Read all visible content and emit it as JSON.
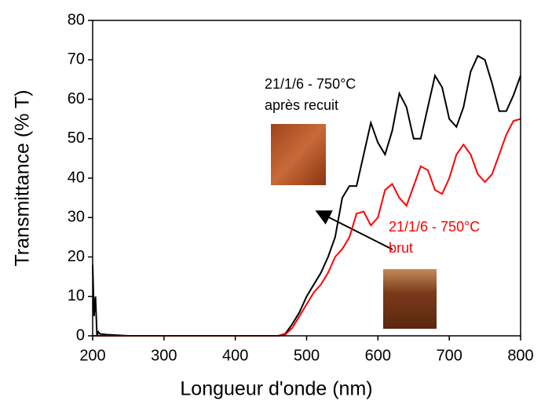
{
  "chart_data": {
    "type": "line",
    "xlabel": "Longueur d'onde (nm)",
    "ylabel": "Transmittance (% T)",
    "x": [
      200,
      202,
      204,
      206,
      208,
      210,
      220,
      250,
      300,
      350,
      400,
      450,
      460,
      470,
      480,
      490,
      500,
      510,
      520,
      530,
      540,
      550,
      560,
      570,
      580,
      590,
      600,
      610,
      620,
      630,
      640,
      650,
      660,
      670,
      680,
      690,
      700,
      710,
      720,
      730,
      740,
      750,
      760,
      770,
      780,
      790,
      800
    ],
    "series": [
      {
        "name": "21/1/6 - 750°C après recuit",
        "color": "#000000",
        "values": [
          18,
          5,
          10,
          0,
          1,
          0.5,
          0.3,
          0,
          0,
          0,
          0,
          0,
          0,
          0.5,
          3,
          6,
          10,
          13,
          16,
          20,
          25,
          35,
          38,
          38,
          46,
          54,
          49,
          46,
          52,
          61.5,
          58,
          50,
          50,
          58,
          66,
          63,
          55,
          53,
          58,
          67,
          71,
          70,
          64,
          57,
          57,
          61,
          66
        ]
      },
      {
        "name": "21/1/6 - 750°C brut",
        "color": "#ff0000",
        "values": [
          0,
          0,
          0,
          0,
          0,
          0,
          0,
          0,
          0,
          0,
          0,
          0,
          0,
          0.3,
          2,
          5,
          8,
          11,
          13,
          16,
          20,
          22,
          25,
          31,
          31.5,
          28,
          30,
          37,
          38.5,
          35,
          33,
          38,
          43,
          42,
          37,
          36,
          40,
          46,
          48.5,
          46,
          41,
          39,
          41,
          46,
          51,
          54.5,
          55
        ]
      }
    ],
    "annotations": [
      {
        "lines": [
          "21/1/6 - 750°C",
          "après recuit"
        ],
        "color": "#000000"
      },
      {
        "lines": [
          "21/1/6 - 750°C",
          "brut"
        ],
        "color": "#ff0000"
      }
    ],
    "xlim": [
      200,
      800
    ],
    "xticks": [
      200,
      300,
      400,
      500,
      600,
      700,
      800
    ],
    "ylim": [
      0,
      80
    ],
    "yticks": [
      0,
      10,
      20,
      30,
      40,
      50,
      60,
      70,
      80
    ]
  }
}
